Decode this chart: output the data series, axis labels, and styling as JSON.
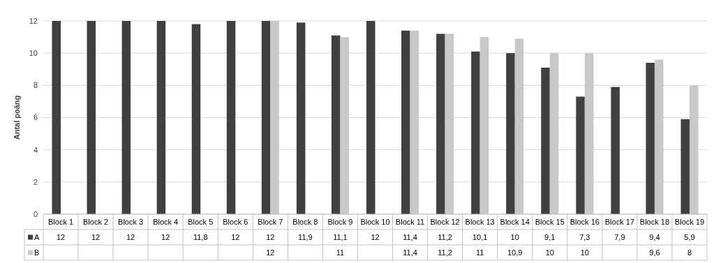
{
  "chart_data": {
    "type": "bar",
    "ylabel": "Antal poäng",
    "categories": [
      "Block 1",
      "Block 2",
      "Block 3",
      "Block 4",
      "Block 5",
      "Block 6",
      "Block 7",
      "Block 8",
      "Block 9",
      "Block 10",
      "Block 11",
      "Block 12",
      "Block 13",
      "Block 14",
      "Block 15",
      "Block 16",
      "Block 17",
      "Block 18",
      "Block 19"
    ],
    "series": [
      {
        "name": "A",
        "color": "#404040",
        "values": [
          12,
          12,
          12,
          12,
          11.8,
          12,
          12,
          11.9,
          11.1,
          12,
          11.4,
          11.2,
          10.1,
          10,
          9.1,
          7.3,
          7.9,
          9.4,
          5.9
        ],
        "value_labels": [
          "12",
          "12",
          "12",
          "12",
          "11,8",
          "12",
          "12",
          "11,9",
          "11,1",
          "12",
          "11,4",
          "11,2",
          "10,1",
          "10",
          "9,1",
          "7,3",
          "7,9",
          "9,4",
          "5,9"
        ]
      },
      {
        "name": "B",
        "color": "#c8c8c8",
        "values": [
          null,
          null,
          null,
          null,
          null,
          null,
          12,
          null,
          11,
          null,
          11.4,
          11.2,
          11,
          10.9,
          10,
          10,
          null,
          9.6,
          8
        ],
        "value_labels": [
          null,
          null,
          null,
          null,
          null,
          null,
          "12",
          null,
          "11",
          null,
          "11,4",
          "11,2",
          "11",
          "10,9",
          "10",
          "10",
          null,
          "9,6",
          "8"
        ]
      }
    ],
    "ylim": [
      0,
      12
    ],
    "yticks": [
      0,
      2,
      4,
      6,
      8,
      10,
      12
    ],
    "grid": "y",
    "legend": "bottom"
  }
}
